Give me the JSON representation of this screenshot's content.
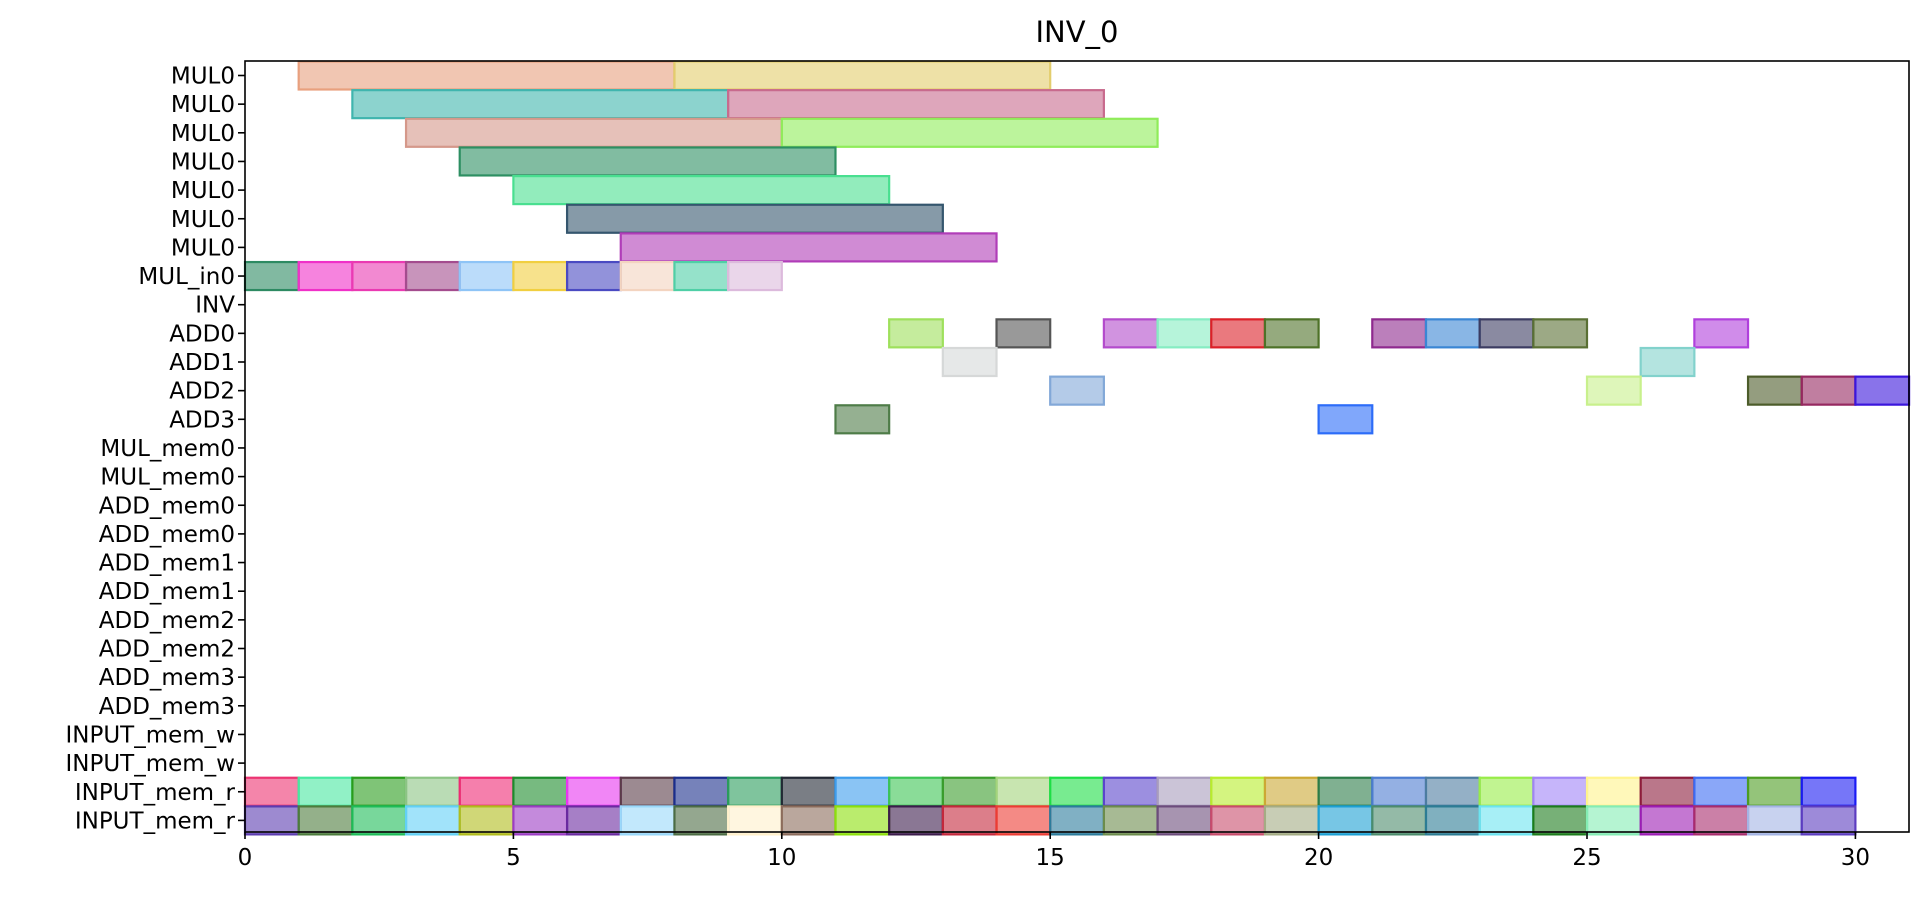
{
  "chart_data": {
    "type": "gantt",
    "title": "INV_0",
    "xlim": [
      0,
      31
    ],
    "xticks": [
      0,
      5,
      10,
      15,
      20,
      25,
      30
    ],
    "rows": [
      "MUL0",
      "MUL0",
      "MUL0",
      "MUL0",
      "MUL0",
      "MUL0",
      "MUL0",
      "MUL_in0",
      "INV",
      "ADD0",
      "ADD1",
      "ADD2",
      "ADD3",
      "MUL_mem0",
      "MUL_mem0",
      "ADD_mem0",
      "ADD_mem0",
      "ADD_mem1",
      "ADD_mem1",
      "ADD_mem2",
      "ADD_mem2",
      "ADD_mem3",
      "ADD_mem3",
      "INPUT_mem_w",
      "INPUT_mem_w",
      "INPUT_mem_r",
      "INPUT_mem_r"
    ],
    "bars": [
      {
        "row": 0,
        "start": 1,
        "end": 8,
        "color": "#e8a07e"
      },
      {
        "row": 0,
        "start": 8,
        "end": 15,
        "color": "#e3cd6d"
      },
      {
        "row": 1,
        "start": 2,
        "end": 9,
        "color": "#40b5ae"
      },
      {
        "row": 1,
        "start": 9,
        "end": 16,
        "color": "#c86a8d"
      },
      {
        "row": 2,
        "start": 3,
        "end": 10,
        "color": "#d5988a"
      },
      {
        "row": 2,
        "start": 10,
        "end": 17,
        "color": "#8fec5a"
      },
      {
        "row": 3,
        "start": 4,
        "end": 11,
        "color": "#2d8f62"
      },
      {
        "row": 4,
        "start": 5,
        "end": 12,
        "color": "#49df90"
      },
      {
        "row": 5,
        "start": 6,
        "end": 13,
        "color": "#35566e"
      },
      {
        "row": 6,
        "start": 7,
        "end": 14,
        "color": "#b03db8"
      },
      {
        "row": 7,
        "start": 0,
        "end": 1,
        "color": "#2d8a62"
      },
      {
        "row": 7,
        "start": 1,
        "end": 2,
        "color": "#f030c8"
      },
      {
        "row": 7,
        "start": 2,
        "end": 3,
        "color": "#ea3ab2"
      },
      {
        "row": 7,
        "start": 3,
        "end": 4,
        "color": "#a44c8e"
      },
      {
        "row": 7,
        "start": 4,
        "end": 5,
        "color": "#8ec4f6"
      },
      {
        "row": 7,
        "start": 5,
        "end": 6,
        "color": "#f1cf40"
      },
      {
        "row": 7,
        "start": 6,
        "end": 7,
        "color": "#4a4ac2"
      },
      {
        "row": 7,
        "start": 7,
        "end": 8,
        "color": "#f3d4c0"
      },
      {
        "row": 7,
        "start": 8,
        "end": 9,
        "color": "#4fcfa6"
      },
      {
        "row": 7,
        "start": 9,
        "end": 10,
        "color": "#dcbadc"
      },
      {
        "row": 9,
        "start": 12,
        "end": 13,
        "color": "#9ee05c"
      },
      {
        "row": 9,
        "start": 14,
        "end": 15,
        "color": "#555555"
      },
      {
        "row": 9,
        "start": 16,
        "end": 17,
        "color": "#b34bcc"
      },
      {
        "row": 9,
        "start": 17,
        "end": 18,
        "color": "#86edc2"
      },
      {
        "row": 9,
        "start": 18,
        "end": 19,
        "color": "#dc2028"
      },
      {
        "row": 9,
        "start": 19,
        "end": 20,
        "color": "#4e7228"
      },
      {
        "row": 9,
        "start": 21,
        "end": 22,
        "color": "#8e2a8e"
      },
      {
        "row": 9,
        "start": 22,
        "end": 23,
        "color": "#3a86d4"
      },
      {
        "row": 9,
        "start": 23,
        "end": 24,
        "color": "#3c3c62"
      },
      {
        "row": 9,
        "start": 24,
        "end": 25,
        "color": "#5a7034"
      },
      {
        "row": 9,
        "start": 27,
        "end": 28,
        "color": "#b040dc"
      },
      {
        "row": 10,
        "start": 13,
        "end": 14,
        "color": "#d6d8d8"
      },
      {
        "row": 10,
        "start": 26,
        "end": 27,
        "color": "#82d2cc"
      },
      {
        "row": 11,
        "start": 15,
        "end": 16,
        "color": "#82a8d8"
      },
      {
        "row": 11,
        "start": 25,
        "end": 26,
        "color": "#c8f08c"
      },
      {
        "row": 11,
        "start": 28,
        "end": 29,
        "color": "#4c5c2a"
      },
      {
        "row": 11,
        "start": 29,
        "end": 30,
        "color": "#962860"
      },
      {
        "row": 11,
        "start": 30,
        "end": 31,
        "color": "#3a16dc"
      },
      {
        "row": 12,
        "start": 11,
        "end": 12,
        "color": "#4e7c48"
      },
      {
        "row": 12,
        "start": 20,
        "end": 21,
        "color": "#2c6cf8"
      },
      {
        "row": 25,
        "start": 0,
        "end": 1,
        "color": "#ec3472"
      },
      {
        "row": 25,
        "start": 1,
        "end": 2,
        "color": "#48e8a0"
      },
      {
        "row": 25,
        "start": 2,
        "end": 3,
        "color": "#2a9c1c"
      },
      {
        "row": 25,
        "start": 3,
        "end": 4,
        "color": "#8cc484"
      },
      {
        "row": 25,
        "start": 4,
        "end": 5,
        "color": "#ef2a74"
      },
      {
        "row": 25,
        "start": 5,
        "end": 6,
        "color": "#1c8c2c"
      },
      {
        "row": 25,
        "start": 6,
        "end": 7,
        "color": "#e836f0"
      },
      {
        "row": 25,
        "start": 7,
        "end": 8,
        "color": "#5a3c48"
      },
      {
        "row": 25,
        "start": 8,
        "end": 9,
        "color": "#1a2e8c"
      },
      {
        "row": 25,
        "start": 9,
        "end": 10,
        "color": "#2a9c5c"
      },
      {
        "row": 25,
        "start": 10,
        "end": 11,
        "color": "#222834"
      },
      {
        "row": 25,
        "start": 11,
        "end": 12,
        "color": "#3c9cec"
      },
      {
        "row": 25,
        "start": 12,
        "end": 13,
        "color": "#3cc454"
      },
      {
        "row": 25,
        "start": 13,
        "end": 14,
        "color": "#3a9c2c"
      },
      {
        "row": 25,
        "start": 14,
        "end": 15,
        "color": "#a4d47c"
      },
      {
        "row": 25,
        "start": 15,
        "end": 16,
        "color": "#1ede46"
      },
      {
        "row": 25,
        "start": 16,
        "end": 17,
        "color": "#5a44cc"
      },
      {
        "row": 25,
        "start": 17,
        "end": 18,
        "color": "#a89cbc"
      },
      {
        "row": 25,
        "start": 18,
        "end": 19,
        "color": "#b8ec2c"
      },
      {
        "row": 25,
        "start": 19,
        "end": 20,
        "color": "#cca834"
      },
      {
        "row": 25,
        "start": 20,
        "end": 21,
        "color": "#2c7c48"
      },
      {
        "row": 25,
        "start": 21,
        "end": 22,
        "color": "#4c7cd0"
      },
      {
        "row": 25,
        "start": 22,
        "end": 23,
        "color": "#4c7ca0"
      },
      {
        "row": 25,
        "start": 23,
        "end": 24,
        "color": "#98ec48"
      },
      {
        "row": 25,
        "start": 24,
        "end": 25,
        "color": "#a084f6"
      },
      {
        "row": 25,
        "start": 25,
        "end": 26,
        "color": "#fff48c"
      },
      {
        "row": 25,
        "start": 26,
        "end": 27,
        "color": "#8c1c3c"
      },
      {
        "row": 25,
        "start": 27,
        "end": 28,
        "color": "#3c6cf4"
      },
      {
        "row": 25,
        "start": 28,
        "end": 29,
        "color": "#4c9c22"
      },
      {
        "row": 25,
        "start": 29,
        "end": 30,
        "color": "#1a1af4"
      },
      {
        "row": 26,
        "start": 0,
        "end": 1,
        "color": "#5c3cb0"
      },
      {
        "row": 26,
        "start": 1,
        "end": 2,
        "color": "#4c7c3c"
      },
      {
        "row": 26,
        "start": 2,
        "end": 3,
        "color": "#1ebc58"
      },
      {
        "row": 26,
        "start": 3,
        "end": 4,
        "color": "#62d0f6"
      },
      {
        "row": 26,
        "start": 4,
        "end": 5,
        "color": "#b0bc1c"
      },
      {
        "row": 26,
        "start": 5,
        "end": 6,
        "color": "#9c3cc4"
      },
      {
        "row": 26,
        "start": 6,
        "end": 7,
        "color": "#6a2aa0"
      },
      {
        "row": 26,
        "start": 7,
        "end": 8,
        "color": "#9ad8fa"
      },
      {
        "row": 26,
        "start": 8,
        "end": 9,
        "color": "#4c6c44"
      },
      {
        "row": 26,
        "start": 9,
        "end": 10,
        "color": "#fff0cc"
      },
      {
        "row": 26,
        "start": 10,
        "end": 11,
        "color": "#8c6c5c"
      },
      {
        "row": 26,
        "start": 11,
        "end": 12,
        "color": "#8ce00c"
      },
      {
        "row": 26,
        "start": 12,
        "end": 13,
        "color": "#3c1c4c"
      },
      {
        "row": 26,
        "start": 13,
        "end": 14,
        "color": "#c4283c"
      },
      {
        "row": 26,
        "start": 14,
        "end": 15,
        "color": "#ec3c34"
      },
      {
        "row": 26,
        "start": 15,
        "end": 16,
        "color": "#2c7c9c"
      },
      {
        "row": 26,
        "start": 16,
        "end": 17,
        "color": "#6c8c4c"
      },
      {
        "row": 26,
        "start": 17,
        "end": 18,
        "color": "#6c4c7c"
      },
      {
        "row": 26,
        "start": 18,
        "end": 19,
        "color": "#c84c6c"
      },
      {
        "row": 26,
        "start": 19,
        "end": 20,
        "color": "#a4ac84"
      },
      {
        "row": 26,
        "start": 20,
        "end": 21,
        "color": "#1ca0d4"
      },
      {
        "row": 26,
        "start": 21,
        "end": 22,
        "color": "#4c8c6c"
      },
      {
        "row": 26,
        "start": 22,
        "end": 23,
        "color": "#2c7c94"
      },
      {
        "row": 26,
        "start": 23,
        "end": 24,
        "color": "#6ce4f0"
      },
      {
        "row": 26,
        "start": 24,
        "end": 25,
        "color": "#1c7c1c"
      },
      {
        "row": 26,
        "start": 25,
        "end": 26,
        "color": "#84ecb4"
      },
      {
        "row": 26,
        "start": 26,
        "end": 27,
        "color": "#9c1cb4"
      },
      {
        "row": 26,
        "start": 27,
        "end": 28,
        "color": "#a82c6c"
      },
      {
        "row": 26,
        "start": 28,
        "end": 29,
        "color": "#a4b4e4"
      },
      {
        "row": 26,
        "start": 29,
        "end": 30,
        "color": "#5c3cc0"
      }
    ]
  }
}
